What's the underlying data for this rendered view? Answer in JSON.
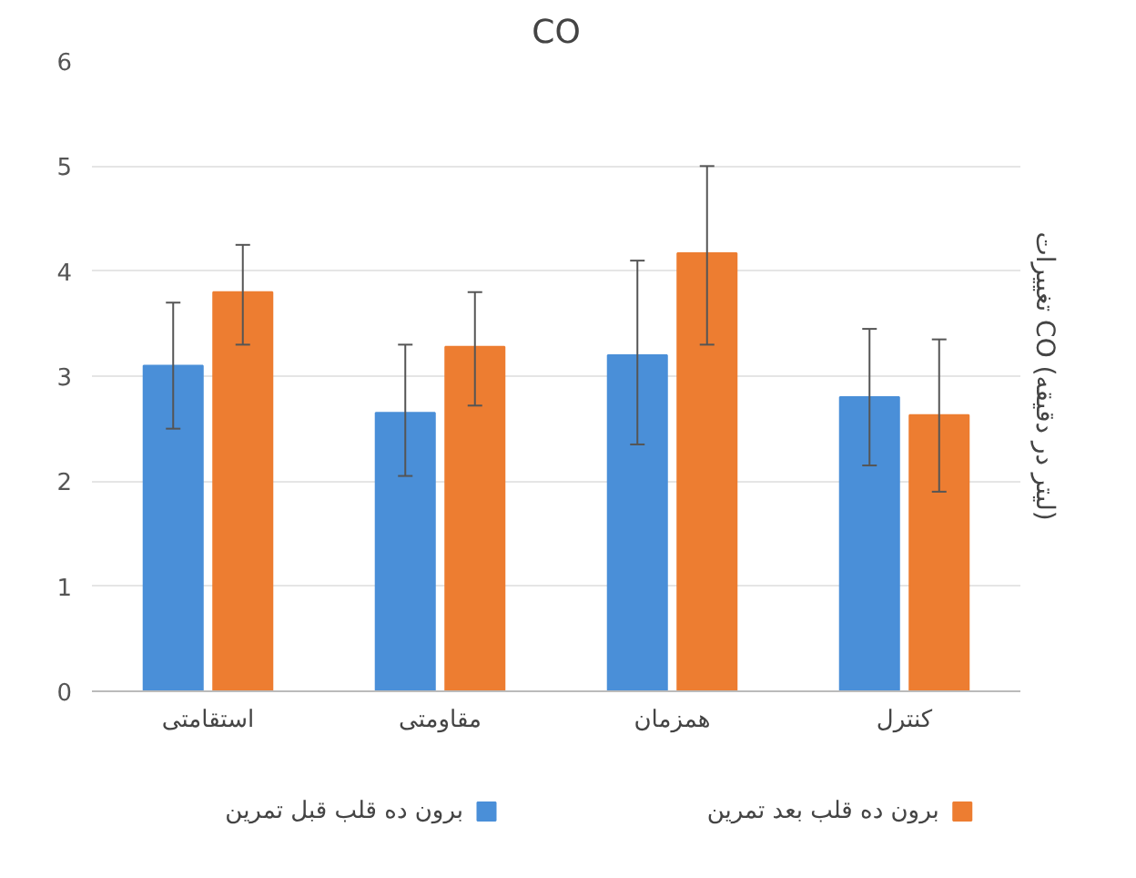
{
  "chart_data": {
    "type": "bar",
    "title": "CO",
    "ylabel": "تغییرات CO (لیتر در دقیقه)",
    "categories": [
      "استقامتی",
      "مقاومتی",
      "همزمان",
      "کنترل"
    ],
    "series": [
      {
        "name": "برون ده قلب قبل تمرین",
        "color": "#4a8fd8",
        "values": [
          3.1,
          2.65,
          3.2,
          2.8
        ],
        "errors": [
          [
            2.5,
            3.7
          ],
          [
            2.05,
            3.3
          ],
          [
            2.35,
            4.1
          ],
          [
            2.15,
            3.45
          ]
        ]
      },
      {
        "name": "برون ده قلب بعد تمرین",
        "color": "#ed7d31",
        "values": [
          3.8,
          3.28,
          4.17,
          2.63
        ],
        "errors": [
          [
            3.3,
            4.25
          ],
          [
            2.72,
            3.8
          ],
          [
            3.3,
            5.0
          ],
          [
            1.9,
            3.35
          ]
        ]
      }
    ],
    "ylim": [
      0,
      6
    ],
    "yticks": [
      0,
      1,
      2,
      3,
      4,
      5,
      6
    ],
    "grid": "y",
    "legend": "bottom"
  }
}
